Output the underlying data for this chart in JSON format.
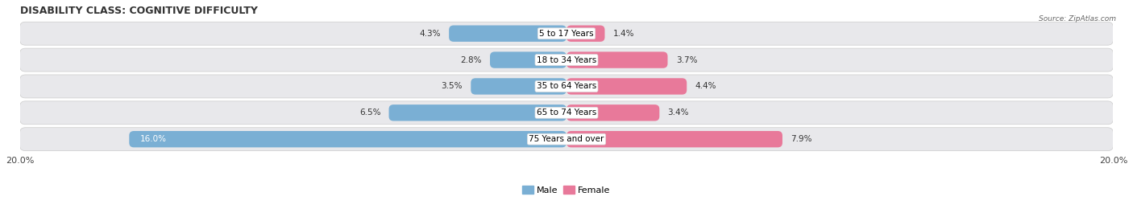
{
  "title": "DISABILITY CLASS: COGNITIVE DIFFICULTY",
  "source": "Source: ZipAtlas.com",
  "categories": [
    "5 to 17 Years",
    "18 to 34 Years",
    "35 to 64 Years",
    "65 to 74 Years",
    "75 Years and over"
  ],
  "male_values": [
    4.3,
    2.8,
    3.5,
    6.5,
    16.0
  ],
  "female_values": [
    1.4,
    3.7,
    4.4,
    3.4,
    7.9
  ],
  "male_color": "#7aafd4",
  "female_color": "#e8799a",
  "row_bg_color": "#e8e8eb",
  "max_value": 20.0,
  "title_fontsize": 9,
  "value_fontsize": 7.5,
  "axis_label_fontsize": 8,
  "category_label_fontsize": 7.5,
  "legend_fontsize": 8,
  "background_color": "#ffffff"
}
